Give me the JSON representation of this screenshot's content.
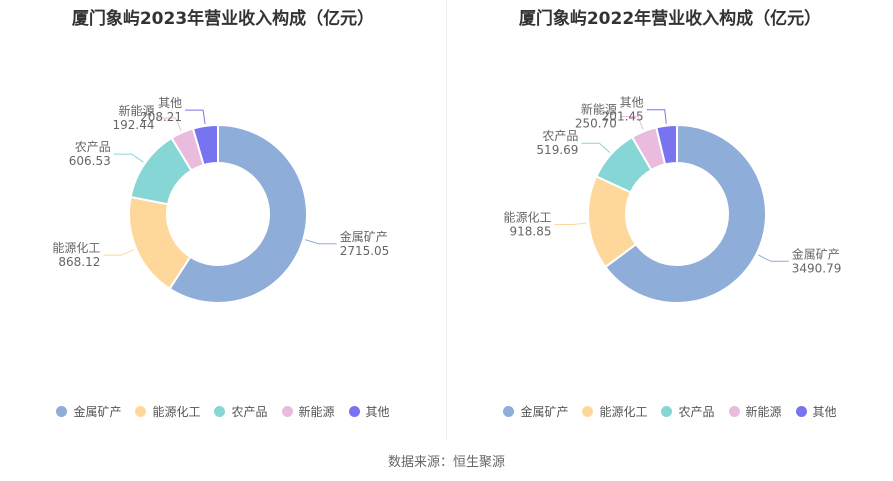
{
  "source": "数据来源：恒生聚源",
  "chart_data": [
    {
      "type": "pie",
      "title": "厦门象屿2023年营业收入构成（亿元）",
      "categories": [
        "金属矿产",
        "能源化工",
        "农产品",
        "新能源",
        "其他"
      ],
      "values": [
        2715.05,
        868.12,
        606.53,
        192.44,
        208.21
      ],
      "value_labels": [
        "2715.05",
        "868.12",
        "606.53",
        "192.44",
        "208.21"
      ],
      "colors": [
        "#8fadd9",
        "#fdd89a",
        "#86d6d6",
        "#e9bbdc",
        "#7873ef"
      ],
      "donut": true,
      "legend": "bottom"
    },
    {
      "type": "pie",
      "title": "厦门象屿2022年营业收入构成（亿元）",
      "categories": [
        "金属矿产",
        "能源化工",
        "农产品",
        "新能源",
        "其他"
      ],
      "values": [
        3490.79,
        918.85,
        519.69,
        250.7,
        201.45
      ],
      "value_labels": [
        "3490.79",
        "918.85",
        "519.69",
        "250.70",
        "201.45"
      ],
      "colors": [
        "#8fadd9",
        "#fdd89a",
        "#86d6d6",
        "#e9bbdc",
        "#7873ef"
      ],
      "donut": true,
      "legend": "bottom"
    }
  ]
}
